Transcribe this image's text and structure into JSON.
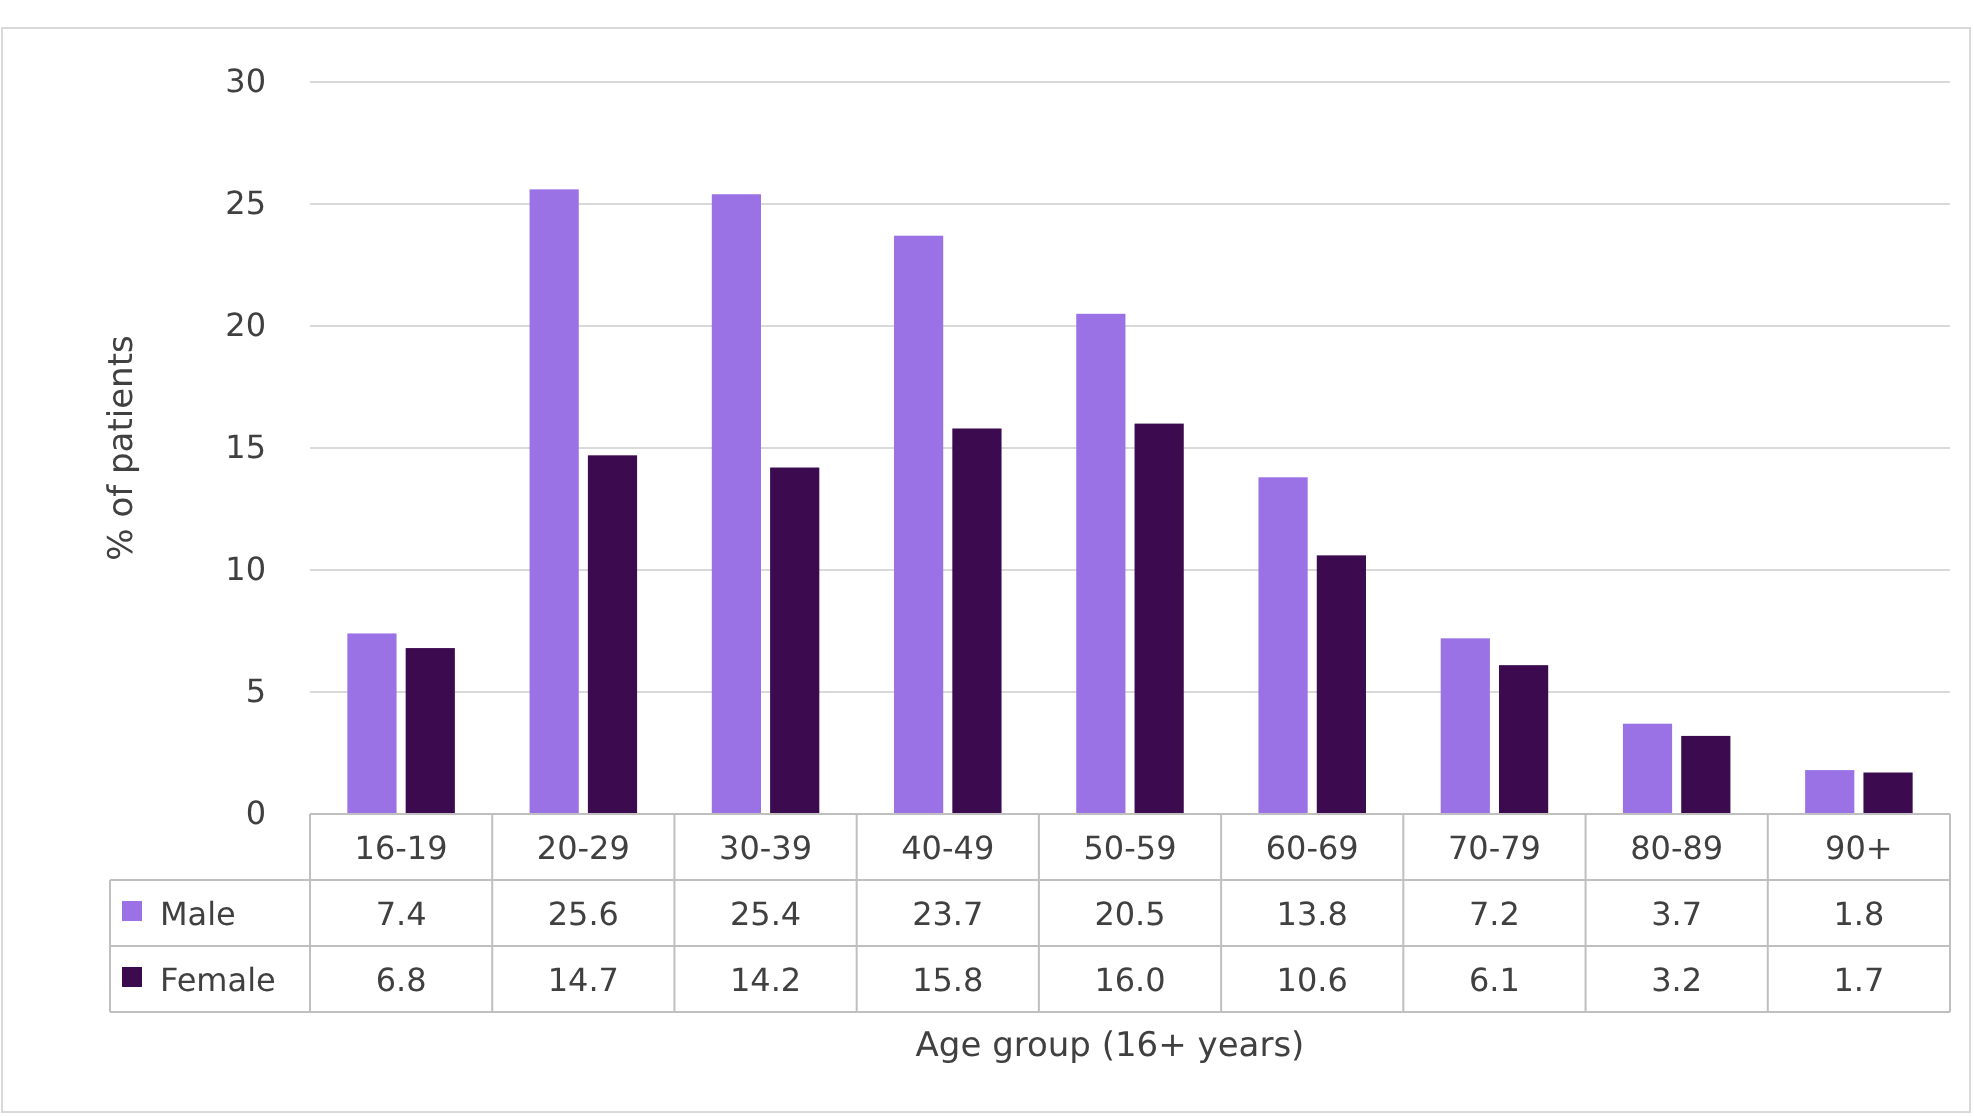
{
  "chart_data": {
    "type": "bar",
    "xlabel": "Age group (16+ years)",
    "ylabel": "% of patients",
    "categories": [
      "16-19",
      "20-29",
      "30-39",
      "40-49",
      "50-59",
      "60-69",
      "70-79",
      "80-89",
      "90+"
    ],
    "series": [
      {
        "name": "Male",
        "color": "#9b72e6",
        "values": [
          7.4,
          25.6,
          25.4,
          23.7,
          20.5,
          13.8,
          7.2,
          3.7,
          1.8
        ],
        "value_labels": [
          "7.4",
          "25.6",
          "25.4",
          "23.7",
          "20.5",
          "13.8",
          "7.2",
          "3.7",
          "1.8"
        ]
      },
      {
        "name": "Female",
        "color": "#3b0a4f",
        "values": [
          6.8,
          14.7,
          14.2,
          15.8,
          16.0,
          10.6,
          6.1,
          3.2,
          1.7
        ],
        "value_labels": [
          "6.8",
          "14.7",
          "14.2",
          "15.8",
          "16.0",
          "10.6",
          "6.1",
          "3.2",
          "1.7"
        ]
      }
    ],
    "ylim": [
      0,
      30
    ],
    "yticks": [
      0,
      5,
      10,
      15,
      20,
      25,
      30
    ],
    "grid": "y",
    "legend": "bottom left"
  }
}
